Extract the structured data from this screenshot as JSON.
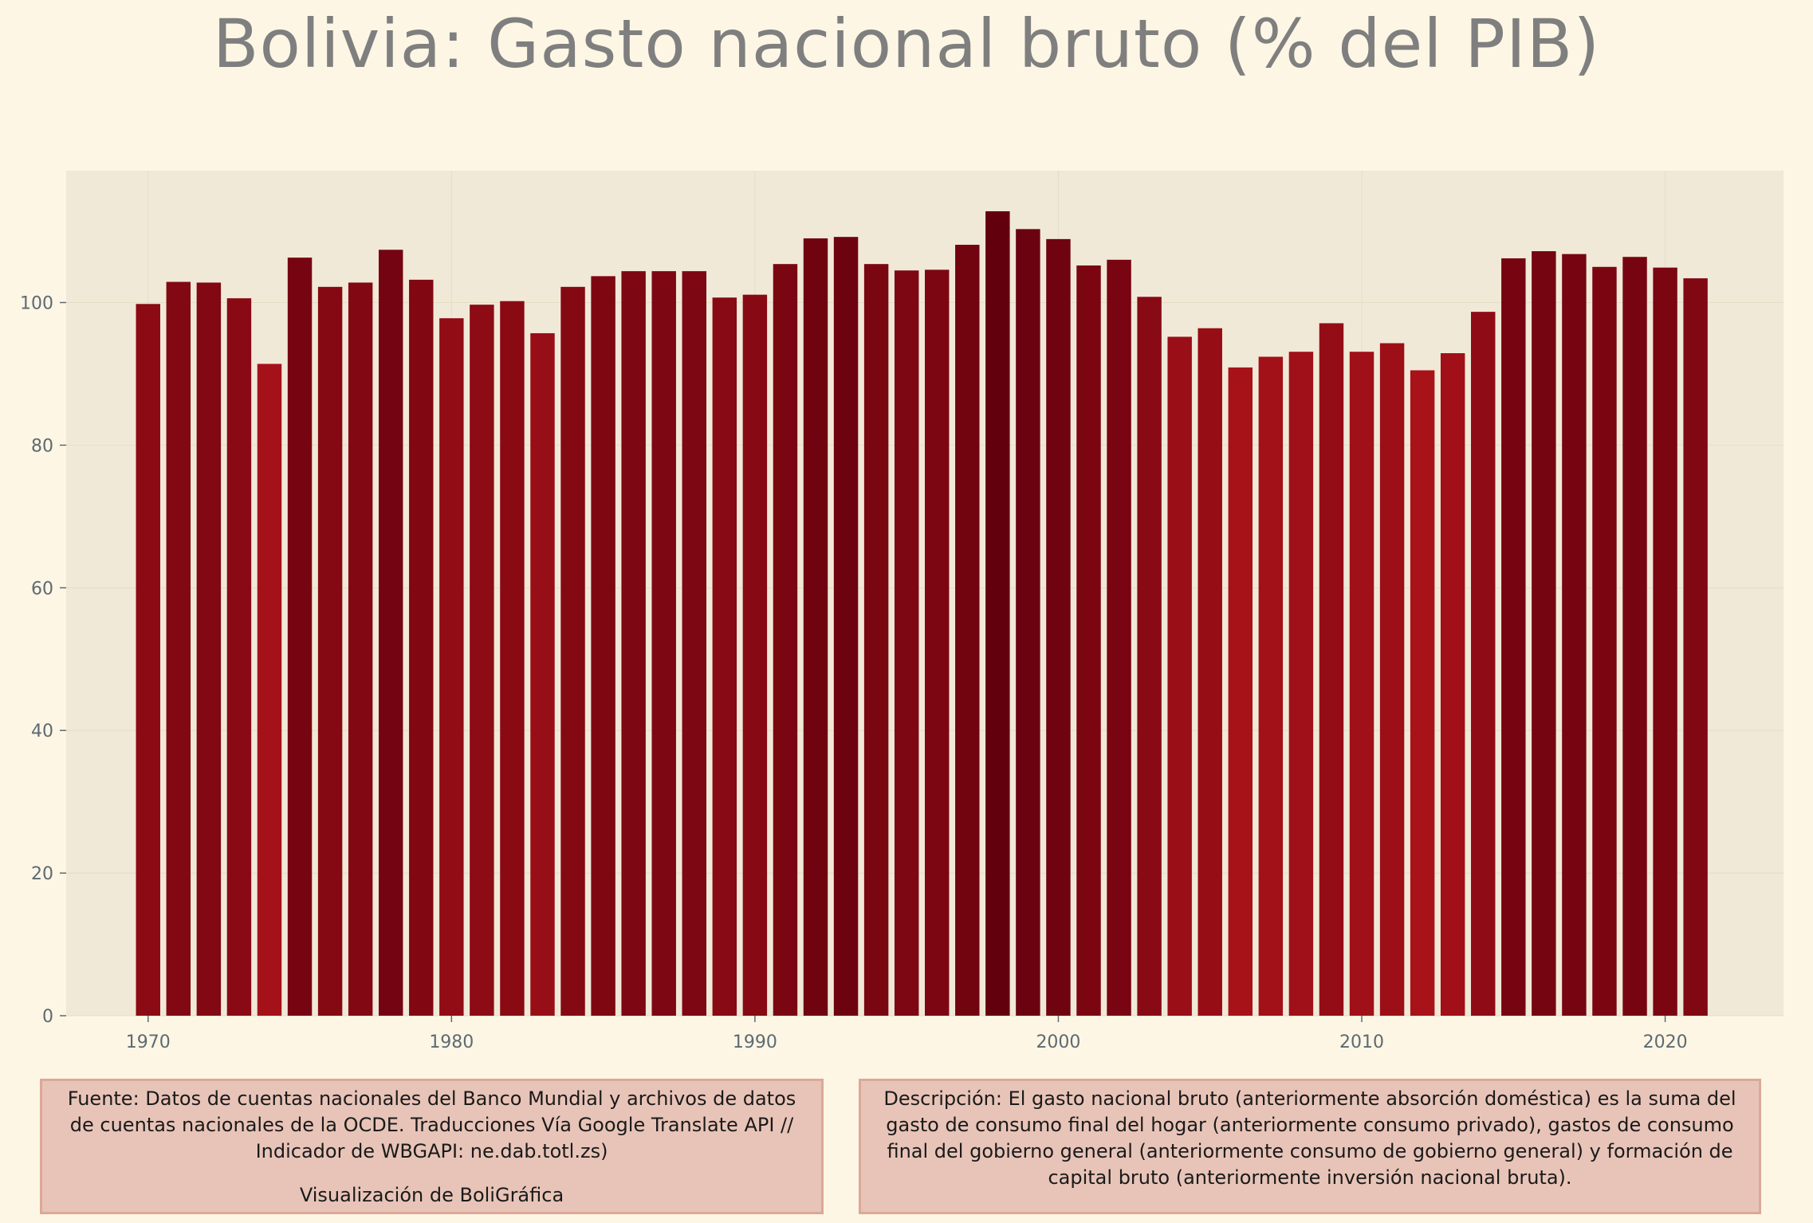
{
  "chart_data": {
    "type": "bar",
    "title": "Bolivia:  Gasto nacional bruto (% del PIB)",
    "xlabel": "",
    "ylabel": "",
    "x": [
      1970,
      1971,
      1972,
      1973,
      1974,
      1975,
      1976,
      1977,
      1978,
      1979,
      1980,
      1981,
      1982,
      1983,
      1984,
      1985,
      1986,
      1987,
      1988,
      1989,
      1990,
      1991,
      1992,
      1993,
      1994,
      1995,
      1996,
      1997,
      1998,
      1999,
      2000,
      2001,
      2002,
      2003,
      2004,
      2005,
      2006,
      2007,
      2008,
      2009,
      2010,
      2011,
      2012,
      2013,
      2014,
      2015,
      2016,
      2017,
      2018,
      2019,
      2020,
      2021
    ],
    "values": [
      99.8,
      102.9,
      102.8,
      100.6,
      91.4,
      106.3,
      102.2,
      102.8,
      107.4,
      103.2,
      97.8,
      99.7,
      100.2,
      95.7,
      102.2,
      103.7,
      104.4,
      104.4,
      104.4,
      100.7,
      101.1,
      105.4,
      109.0,
      109.2,
      105.4,
      104.5,
      104.6,
      108.1,
      112.8,
      110.3,
      108.9,
      105.2,
      106.0,
      100.8,
      95.2,
      96.4,
      90.9,
      92.4,
      93.1,
      97.1,
      93.1,
      94.3,
      90.5,
      92.9,
      98.7,
      106.2,
      107.2,
      106.8,
      105.0,
      106.4,
      104.9,
      103.4
    ],
    "yticks": [
      0,
      20,
      40,
      60,
      80,
      100
    ],
    "xticks": [
      1970,
      1980,
      1990,
      2000,
      2010,
      2020
    ],
    "ylim": [
      0,
      118.5
    ],
    "xlim": [
      1967.3,
      2023.9
    ],
    "grid": true,
    "colors": {
      "low": "#a81219",
      "high": "#63000e"
    }
  },
  "footer": {
    "source": "Fuente: Datos de cuentas nacionales del Banco Mundial y archivos de datos de cuentas nacionales de la OCDE.   Traducciones Vía Google Translate API // Indicador de WBGAPI: ne.dab.totl.zs)",
    "credit": "Visualización de BoliGráfica",
    "description": "Descripción: El gasto nacional bruto (anteriormente absorción doméstica) es la suma del gasto de consumo final del hogar (anteriormente consumo privado), gastos de consumo final del gobierno general (anteriormente consumo de gobierno general) y formación de capital bruto (anteriormente inversión nacional bruta)."
  }
}
